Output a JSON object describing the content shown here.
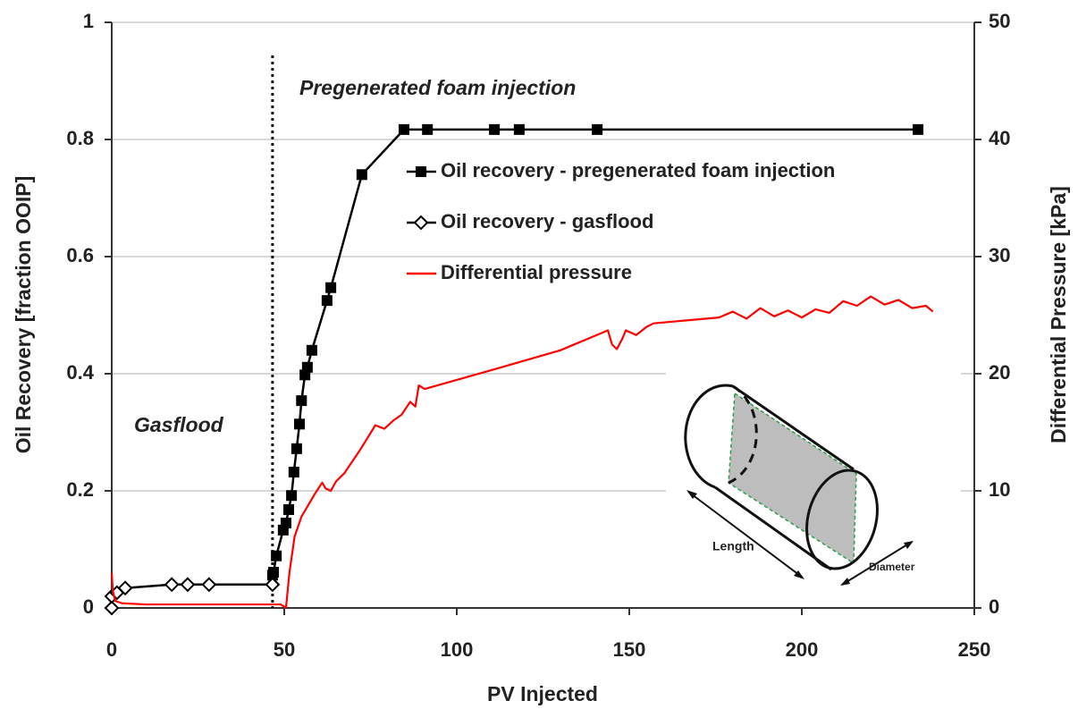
{
  "chart_data": {
    "type": "line",
    "xlabel": "PV Injected",
    "ylabel": "Oil Recovery [fraction OOIP]",
    "y2label": "Differential Pressure [kPa]",
    "xlim": [
      0,
      250
    ],
    "xticks": [
      0,
      50,
      100,
      150,
      200,
      250
    ],
    "ylim": [
      0,
      1
    ],
    "yticks": [
      0,
      0.2,
      0.4,
      0.6,
      0.8,
      1
    ],
    "y2lim": [
      0,
      50
    ],
    "y2ticks": [
      0,
      10,
      20,
      30,
      40,
      50
    ],
    "grid": true,
    "legend": "center-right",
    "annotations": [
      "Gasflood",
      "Pregenerated foam injection"
    ],
    "vline_x": 46.6,
    "inset_labels": [
      "Length",
      "Diameter"
    ],
    "series": [
      {
        "name": "Oil recovery - pregenerated foam injection",
        "color": "#000000",
        "marker": "square",
        "x": [
          46.6,
          46.9,
          47.7,
          49.7,
          50.5,
          51.3,
          52.1,
          52.8,
          53.6,
          54.4,
          55.0,
          56.0,
          56.7,
          58.0,
          62.4,
          63.5,
          72.5,
          84.7,
          91.5,
          110.9,
          118.1,
          140.7,
          233.7
        ],
        "values": [
          0.056,
          0.061,
          0.089,
          0.133,
          0.145,
          0.168,
          0.192,
          0.232,
          0.272,
          0.314,
          0.354,
          0.398,
          0.411,
          0.44,
          0.525,
          0.547,
          0.74,
          0.817,
          0.817,
          0.817,
          0.817,
          0.817,
          0.817
        ]
      },
      {
        "name": "Oil recovery - gasflood",
        "color": "#000000",
        "marker": "diamond",
        "x": [
          0,
          0,
          1.5,
          3.9,
          17.4,
          22,
          28.2,
          46.6
        ],
        "values": [
          0,
          0.02,
          0.026,
          0.034,
          0.04,
          0.04,
          0.04,
          0.04
        ]
      },
      {
        "name": "Differential pressure",
        "color": "#ff0000",
        "marker": "none",
        "axis": "y2",
        "x": [
          0,
          0.3,
          1,
          3,
          10,
          30,
          49,
          50.5,
          51.5,
          53,
          55,
          57,
          59,
          61,
          62,
          63.5,
          65,
          67.4,
          72,
          76.4,
          79,
          81.6,
          84,
          86.5,
          88,
          89,
          90.7,
          110,
          130,
          143.8,
          145,
          146.4,
          148,
          149,
          152,
          155,
          157,
          176,
          180,
          184,
          188,
          192,
          196,
          200,
          204,
          208,
          212,
          216,
          220,
          224,
          228,
          232,
          236,
          238
        ],
        "values": [
          3,
          1.5,
          0.6,
          0.4,
          0.3,
          0.3,
          0.3,
          0,
          3,
          6.1,
          7.8,
          8.8,
          9.8,
          10.7,
          10.2,
          10,
          10.8,
          11.5,
          13.5,
          15.6,
          15.3,
          16,
          16.5,
          17.6,
          17.2,
          19,
          18.7,
          20.3,
          22,
          23.7,
          22.5,
          22.1,
          23,
          23.7,
          23.3,
          24,
          24.3,
          24.8,
          25.3,
          24.7,
          25.6,
          24.9,
          25.4,
          24.8,
          25.5,
          25.2,
          26.2,
          25.8,
          26.6,
          25.9,
          26.3,
          25.6,
          25.8,
          25.3
        ]
      }
    ]
  }
}
